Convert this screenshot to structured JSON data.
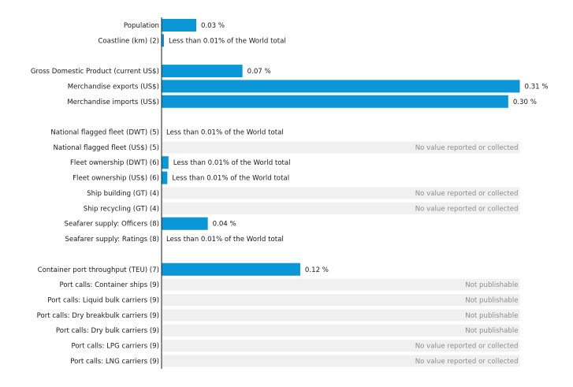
{
  "chart_data": {
    "type": "bar",
    "orientation": "horizontal",
    "unit": "%",
    "bar_color": "#0b96d8",
    "missing_bg_color": "#f0f0f0",
    "xlim": [
      0,
      0.31
    ],
    "rows": [
      {
        "label": "Population",
        "value": 0.03,
        "text": "0.03 %"
      },
      {
        "label": "Coastline (km) (2)",
        "value": 0.002,
        "text": "Less than 0.01% of the World total"
      },
      {
        "gap": true
      },
      {
        "label": "Gross Domestic Product (current US$)",
        "value": 0.07,
        "text": "0.07 %"
      },
      {
        "label": "Merchandise exports (US$)",
        "value": 0.31,
        "text": "0.31 %"
      },
      {
        "label": "Merchandise imports (US$)",
        "value": 0.3,
        "text": "0.30 %"
      },
      {
        "gap": true
      },
      {
        "label": "National flagged fleet (DWT) (5)",
        "value": 0.0,
        "text": "Less than 0.01% of the World total"
      },
      {
        "label": "National flagged fleet (US$) (5)",
        "value": null,
        "text": "No value reported or collected"
      },
      {
        "label": "Fleet ownership (DWT) (6)",
        "value": 0.006,
        "text": "Less than 0.01% of the World total"
      },
      {
        "label": "Fleet ownership (US$) (6)",
        "value": 0.005,
        "text": "Less than 0.01% of the World total"
      },
      {
        "label": "Ship building (GT) (4)",
        "value": null,
        "text": "No value reported or collected"
      },
      {
        "label": "Ship recycling (GT) (4)",
        "value": null,
        "text": "No value reported or collected"
      },
      {
        "label": "Seafarer supply: Officers (8)",
        "value": 0.04,
        "text": "0.04 %"
      },
      {
        "label": "Seafarer supply: Ratings (8)",
        "value": 0.0,
        "text": "Less than 0.01% of the World total"
      },
      {
        "gap": true
      },
      {
        "label": "Container port throughput (TEU) (7)",
        "value": 0.12,
        "text": "0.12 %"
      },
      {
        "label": "Port calls: Container ships (9)",
        "value": null,
        "text": "Not publishable"
      },
      {
        "label": "Port calls: Liquid bulk carriers (9)",
        "value": null,
        "text": "Not publishable"
      },
      {
        "label": "Port calls: Dry breakbulk carriers (9)",
        "value": null,
        "text": "Not publishable"
      },
      {
        "label": "Port calls: Dry bulk carriers (9)",
        "value": null,
        "text": "Not publishable"
      },
      {
        "label": "Port calls: LPG carriers (9)",
        "value": null,
        "text": "No value reported or collected"
      },
      {
        "label": "Port calls: LNG carriers (9)",
        "value": null,
        "text": "No value reported or collected"
      }
    ]
  }
}
